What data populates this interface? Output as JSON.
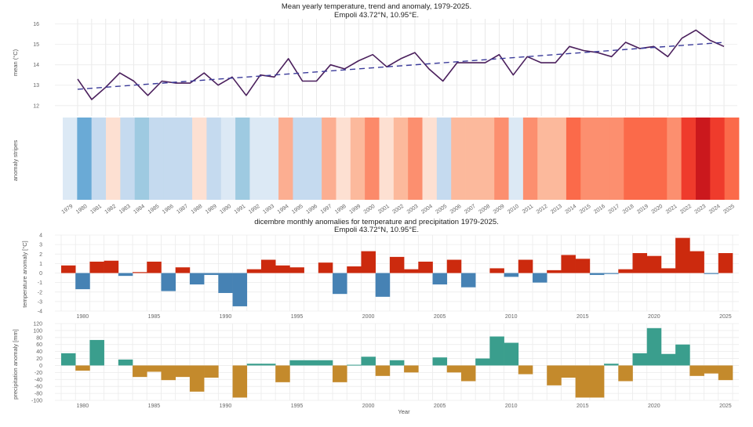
{
  "chart_data": [
    {
      "type": "line",
      "title": "Mean yearly temperature, trend and anomaly, 1979-2025.",
      "subtitle": "Empoli 43.72°N, 10.95°E.",
      "xlabel": "",
      "ylabel": "mean (°C)",
      "ylim": [
        11.8,
        16.1
      ],
      "yticks": [
        12,
        13,
        14,
        15,
        16
      ],
      "grid": true,
      "x": [
        1979,
        1980,
        1981,
        1982,
        1983,
        1984,
        1985,
        1986,
        1987,
        1988,
        1989,
        1990,
        1991,
        1992,
        1993,
        1994,
        1995,
        1996,
        1997,
        1998,
        1999,
        2000,
        2001,
        2002,
        2003,
        2004,
        2005,
        2006,
        2007,
        2008,
        2009,
        2010,
        2011,
        2012,
        2013,
        2014,
        2015,
        2016,
        2017,
        2018,
        2019,
        2020,
        2021,
        2022,
        2023,
        2024,
        2025
      ],
      "series": [
        {
          "name": "mean",
          "style": "solid",
          "color": "#4a1f5c",
          "values": [
            13.3,
            12.3,
            12.9,
            13.6,
            13.2,
            12.5,
            13.2,
            13.1,
            13.1,
            13.6,
            13.0,
            13.4,
            12.5,
            13.5,
            13.4,
            14.3,
            13.2,
            13.2,
            14.0,
            13.8,
            14.2,
            14.5,
            13.9,
            14.3,
            14.6,
            13.8,
            13.2,
            14.1,
            14.1,
            14.1,
            14.5,
            13.5,
            14.4,
            14.1,
            14.1,
            14.9,
            14.7,
            14.6,
            14.4,
            15.1,
            14.8,
            14.9,
            14.4,
            15.3,
            15.7,
            15.2,
            14.9
          ]
        },
        {
          "name": "trend",
          "style": "dashed",
          "color": "#3b3b9a",
          "values_endpoints": {
            "1979": 12.8,
            "2025": 15.1
          }
        }
      ]
    },
    {
      "type": "heatmap",
      "title": "",
      "ylabel": "anomaly stripes",
      "categories": [
        "1979",
        "1980",
        "1981",
        "1982",
        "1983",
        "1984",
        "1985",
        "1986",
        "1987",
        "1988",
        "1989",
        "1990",
        "1991",
        "1992",
        "1993",
        "1994",
        "1995",
        "1996",
        "1997",
        "1998",
        "1999",
        "2000",
        "2001",
        "2002",
        "2003",
        "2004",
        "2005",
        "2006",
        "2007",
        "2008",
        "2009",
        "2010",
        "2011",
        "2012",
        "2013",
        "2014",
        "2015",
        "2016",
        "2017",
        "2018",
        "2019",
        "2020",
        "2021",
        "2022",
        "2023",
        "2024",
        "2025"
      ],
      "colors": [
        "#dce9f5",
        "#6aaad6",
        "#c5daef",
        "#fde0d2",
        "#c5daef",
        "#9ecae1",
        "#c5daef",
        "#c5daef",
        "#c5daef",
        "#fde0d2",
        "#c5daef",
        "#dce9f5",
        "#9ecae1",
        "#dce9f5",
        "#dce9f5",
        "#fcae91",
        "#c5daef",
        "#c5daef",
        "#fcae91",
        "#fde0d2",
        "#fcb99c",
        "#fc8a6a",
        "#fde0d2",
        "#fcb99c",
        "#fc8f6f",
        "#fde0d2",
        "#c5daef",
        "#fcb99c",
        "#fcb99c",
        "#fcb99c",
        "#fc8f6f",
        "#dce9f5",
        "#fc8f6f",
        "#fcb99c",
        "#fcb99c",
        "#fb6a4a",
        "#fc8f6f",
        "#fc8f6f",
        "#fc8f6f",
        "#fb6a4a",
        "#fb6a4a",
        "#fb6a4a",
        "#fc8f6f",
        "#ef3b2c",
        "#cb181d",
        "#ef3b2c",
        "#fb6a4a"
      ]
    },
    {
      "type": "bar",
      "title": "dicembre monthly anomalies for temperature and precipitation 1979-2025.",
      "subtitle": "Empoli 43.72°N, 10.95°E.",
      "ylabel": "temperature anomaly [°C]",
      "ylim": [
        -4,
        4
      ],
      "yticks": [
        -4,
        -3,
        -2,
        -1,
        0,
        1,
        2,
        3,
        4
      ],
      "xticks": [
        1980,
        1985,
        1990,
        1995,
        2000,
        2005,
        2010,
        2015,
        2020,
        2025
      ],
      "positive_color": "#cc2a0e",
      "negative_color": "#4682b4",
      "x": [
        1979,
        1980,
        1981,
        1982,
        1983,
        1984,
        1985,
        1986,
        1987,
        1988,
        1989,
        1990,
        1991,
        1992,
        1993,
        1994,
        1995,
        1996,
        1997,
        1998,
        1999,
        2000,
        2001,
        2002,
        2003,
        2004,
        2005,
        2006,
        2007,
        2008,
        2009,
        2010,
        2011,
        2012,
        2013,
        2014,
        2015,
        2016,
        2017,
        2018,
        2019,
        2020,
        2021,
        2022,
        2023,
        2024,
        2025
      ],
      "values": [
        0.8,
        -1.7,
        1.2,
        1.3,
        -0.3,
        0.1,
        1.2,
        -1.9,
        0.6,
        -1.2,
        -0.2,
        -2.1,
        -3.5,
        0.4,
        1.4,
        0.8,
        0.6,
        null,
        1.1,
        -2.2,
        0.7,
        2.3,
        -2.5,
        1.7,
        0.4,
        1.2,
        -1.2,
        1.4,
        -1.5,
        null,
        0.5,
        -0.4,
        1.4,
        -1.0,
        0.3,
        1.9,
        1.5,
        -0.2,
        -0.1,
        0.4,
        2.1,
        1.8,
        0.5,
        3.7,
        2.3,
        -0.1,
        2.1
      ]
    },
    {
      "type": "bar",
      "title": "",
      "ylabel": "precipitation anomaly [mm]",
      "xlabel": "Year",
      "ylim": [
        -100,
        120
      ],
      "yticks": [
        -100,
        -80,
        -60,
        -40,
        -20,
        0,
        20,
        40,
        60,
        80,
        100,
        120
      ],
      "xticks": [
        1980,
        1985,
        1990,
        1995,
        2000,
        2005,
        2010,
        2015,
        2020,
        2025
      ],
      "positive_color": "#3a9e8d",
      "negative_color": "#c48a2c",
      "x": [
        1979,
        1980,
        1981,
        1982,
        1983,
        1984,
        1985,
        1986,
        1987,
        1988,
        1989,
        1990,
        1991,
        1992,
        1993,
        1994,
        1995,
        1996,
        1997,
        1998,
        1999,
        2000,
        2001,
        2002,
        2003,
        2004,
        2005,
        2006,
        2007,
        2008,
        2009,
        2010,
        2011,
        2012,
        2013,
        2014,
        2015,
        2016,
        2017,
        2018,
        2019,
        2020,
        2021,
        2022,
        2023,
        2024,
        2025
      ],
      "values": [
        35,
        -15,
        73,
        null,
        17,
        -33,
        -18,
        -42,
        -33,
        -75,
        -35,
        null,
        -92,
        5,
        5,
        -48,
        15,
        15,
        15,
        -48,
        2,
        25,
        -30,
        15,
        -20,
        null,
        23,
        -20,
        -45,
        20,
        83,
        65,
        -25,
        null,
        -57,
        -35,
        -92,
        -92,
        5,
        -45,
        35,
        107,
        33,
        60,
        -30,
        -23,
        -42
      ]
    }
  ]
}
